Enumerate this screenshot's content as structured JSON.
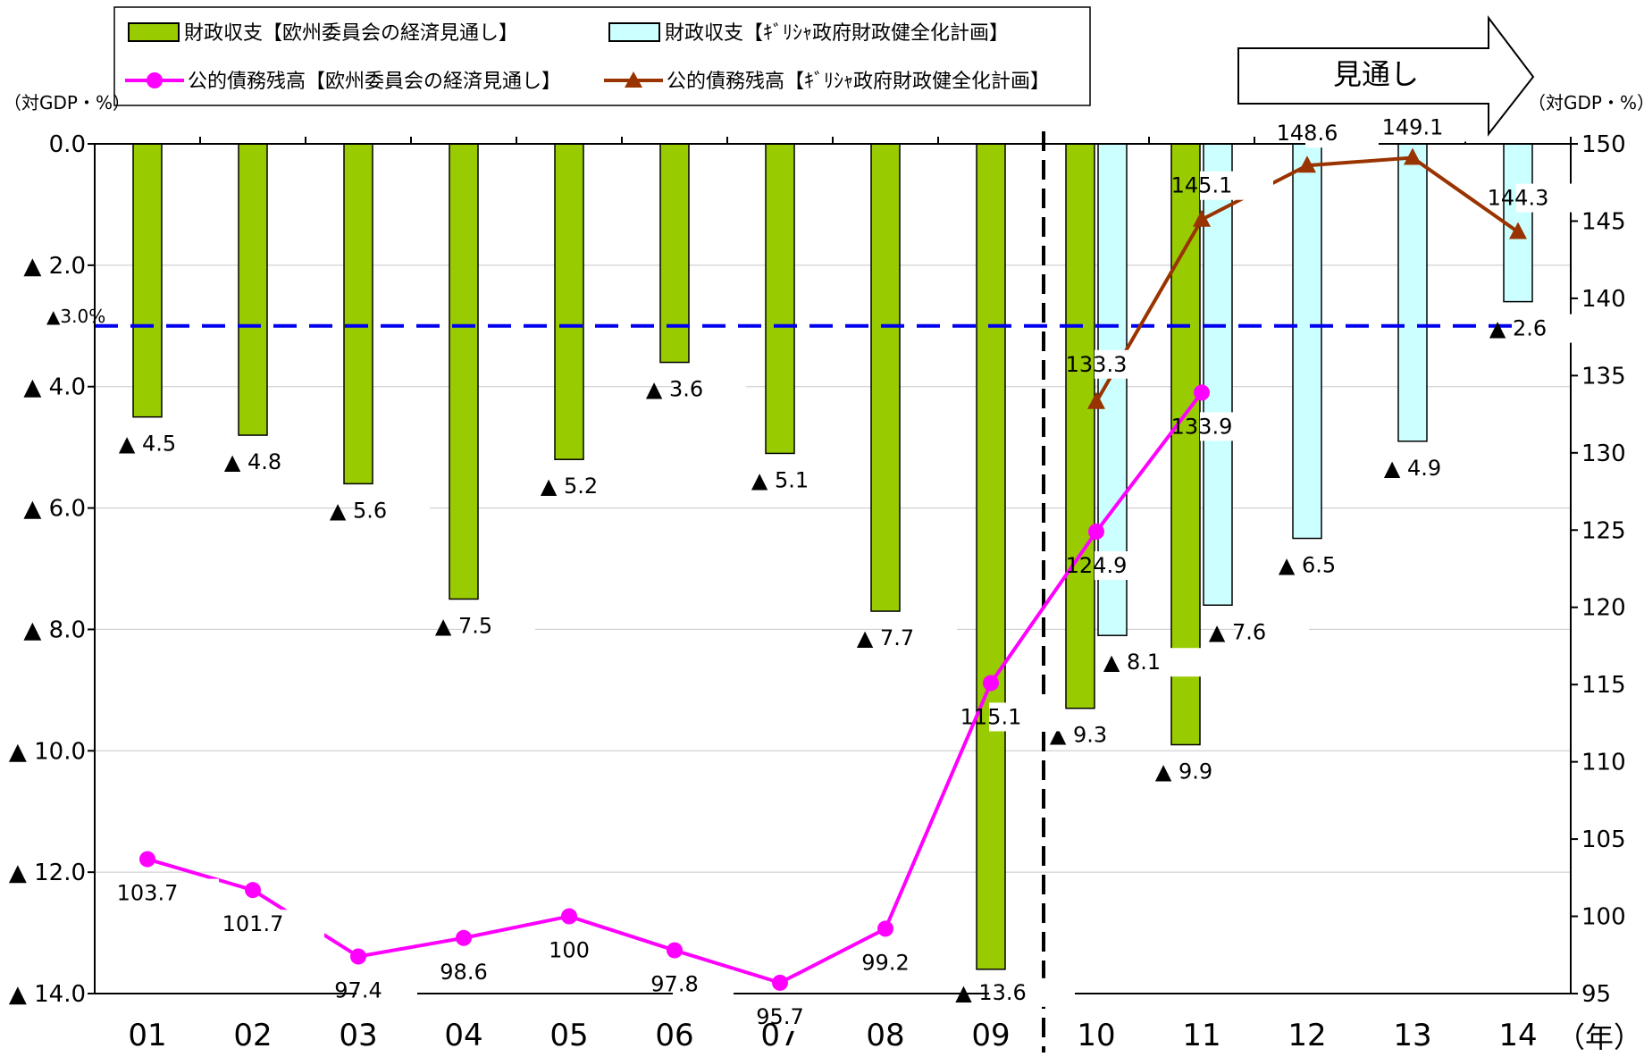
{
  "legend": {
    "bar_eu": "財政収支【欧州委員会の経済見通し】",
    "bar_gr": "財政収支【ｷﾞﾘｼｬ政府財政健全化計画】",
    "line_eu": "公的債務残高【欧州委員会の経済見通し】",
    "line_gr": "公的債務残高【ｷﾞﾘｼｬ政府財政健全化計画】"
  },
  "arrow_label": "見通し",
  "unit_left": "（対GDP・%）",
  "unit_right": "（対GDP・%）",
  "year_suffix": "（年）",
  "ref_line_label": "▲3.0%",
  "chart_data": {
    "type": "bar",
    "categories": [
      "01",
      "02",
      "03",
      "04",
      "05",
      "06",
      "07",
      "08",
      "09",
      "10",
      "11",
      "12",
      "13",
      "14"
    ],
    "left_axis": {
      "ylim": [
        0,
        14
      ],
      "inverted": true,
      "ticks": [
        0,
        2,
        4,
        6,
        8,
        10,
        12,
        14
      ],
      "tick_labels": [
        "0.0",
        "▲ 2.0",
        "▲ 4.0",
        "▲ 6.0",
        "▲ 8.0",
        "▲ 10.0",
        "▲ 12.0",
        "▲ 14.0"
      ]
    },
    "right_axis": {
      "ylim": [
        95,
        150
      ],
      "ticks": [
        95,
        100,
        105,
        110,
        115,
        120,
        125,
        130,
        135,
        140,
        145,
        150
      ],
      "tick_labels": [
        "95",
        "100",
        "105",
        "110",
        "115",
        "120",
        "125",
        "130",
        "135",
        "140",
        "145",
        "150"
      ]
    },
    "reference_line": {
      "axis": "left",
      "value": 3.0
    },
    "forecast_start_after": "09",
    "grid": true,
    "series": [
      {
        "name": "財政収支【欧州委員会の経済見通し】",
        "type": "bar",
        "axis": "left",
        "color": "#99cc00",
        "values": [
          4.5,
          4.8,
          5.6,
          7.5,
          5.2,
          3.6,
          5.1,
          7.7,
          13.6,
          9.3,
          9.9,
          null,
          null,
          null
        ],
        "labels": [
          "▲ 4.5",
          "▲ 4.8",
          "▲ 5.6",
          "▲ 7.5",
          "▲ 5.2",
          "▲ 3.6",
          "▲ 5.1",
          "▲ 7.7",
          "▲ 13.6",
          "▲ 9.3",
          "▲ 9.9",
          "",
          "",
          ""
        ]
      },
      {
        "name": "財政収支【ｷﾞﾘｼｬ政府財政健全化計画】",
        "type": "bar",
        "axis": "left",
        "color": "#ccffff",
        "values": [
          null,
          null,
          null,
          null,
          null,
          null,
          null,
          null,
          null,
          8.1,
          7.6,
          6.5,
          4.9,
          2.6
        ],
        "labels": [
          "",
          "",
          "",
          "",
          "",
          "",
          "",
          "",
          "",
          "▲ 8.1",
          "▲ 7.6",
          "▲ 6.5",
          "▲ 4.9",
          "▲ 2.6"
        ]
      },
      {
        "name": "公的債務残高【欧州委員会の経済見通し】",
        "type": "line",
        "axis": "right",
        "color": "#ff00ff",
        "values": [
          103.7,
          101.7,
          97.4,
          98.6,
          100,
          97.8,
          95.7,
          99.2,
          115.1,
          124.9,
          133.9,
          null,
          null,
          null
        ],
        "labels": [
          "103.7",
          "101.7",
          "97.4",
          "98.6",
          "100",
          "97.8",
          "95.7",
          "99.2",
          "115.1",
          "124.9",
          "133.9",
          "",
          "",
          ""
        ]
      },
      {
        "name": "公的債務残高【ｷﾞﾘｼｬ政府財政健全化計画】",
        "type": "line",
        "axis": "right",
        "color": "#993300",
        "values": [
          null,
          null,
          null,
          null,
          null,
          null,
          null,
          null,
          null,
          133.3,
          145.1,
          148.6,
          149.1,
          144.3
        ],
        "labels": [
          "",
          "",
          "",
          "",
          "",
          "",
          "",
          "",
          "",
          "133.3",
          "145.1",
          "148.6",
          "149.1",
          "144.3"
        ]
      }
    ]
  }
}
